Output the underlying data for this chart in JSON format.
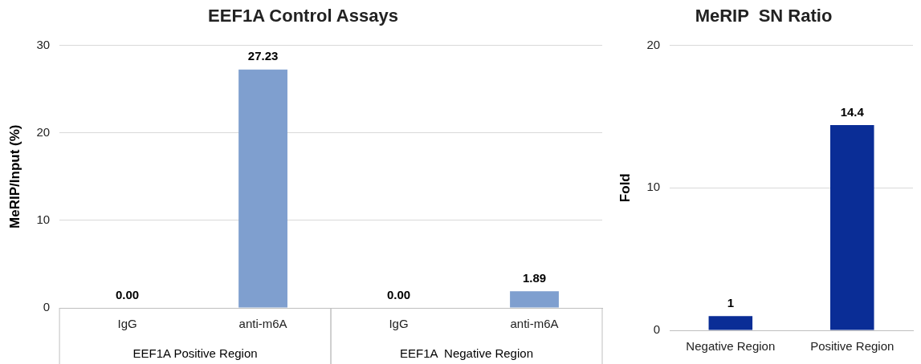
{
  "chart_data": [
    {
      "type": "bar",
      "title": "EEF1A Control Assays",
      "ylabel": "MeRIP/Input (%)",
      "categories": [
        "IgG",
        "anti-m6A",
        "IgG",
        "anti-m6A"
      ],
      "values": [
        0,
        27.23,
        0,
        1.89
      ],
      "value_labels": [
        "0.00",
        "27.23",
        "0.00",
        "1.89"
      ],
      "color": "#7f9fcf",
      "ylim": [
        0,
        30
      ],
      "yticks": [
        0,
        10,
        20,
        30
      ],
      "grid": "y",
      "legend": false,
      "annotations": [
        "EEF1A Positive Region",
        "EEF1A  Negative Region"
      ]
    },
    {
      "type": "bar",
      "title": "MeRIP  SN Ratio",
      "ylabel": "Fold",
      "categories": [
        "Negative Region",
        "Positive Region"
      ],
      "values": [
        1,
        14.4
      ],
      "data_labels": true,
      "color": "#0a2d96",
      "ylim": [
        0,
        20
      ],
      "yticks": [
        0,
        10,
        20
      ],
      "grid": "y",
      "legend": false
    }
  ]
}
